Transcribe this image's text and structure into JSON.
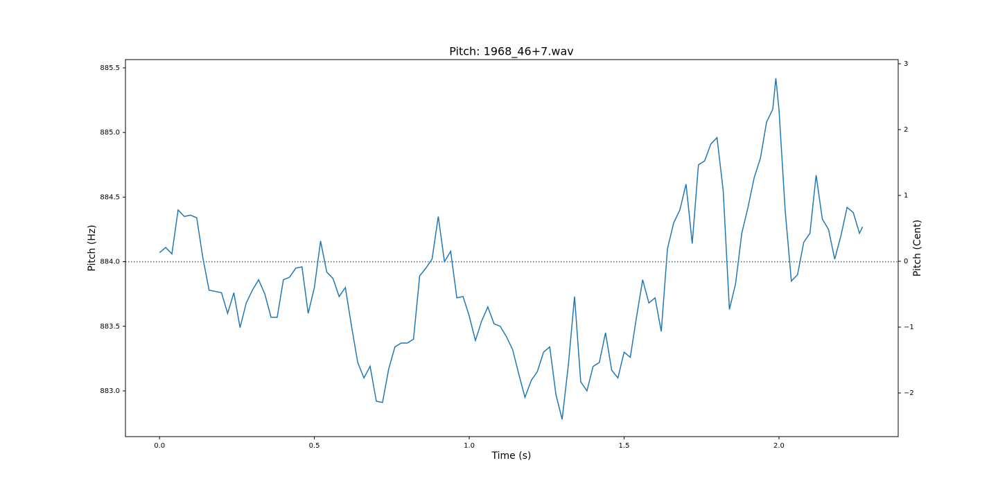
{
  "chart_data": {
    "type": "line",
    "title": "Pitch: 1968_46+7.wav",
    "xlabel": "Time (s)",
    "ylabel": "Pitch (Hz)",
    "y2label": "Pitch (Cent)",
    "color": "#1f77b4",
    "hline": 884.0,
    "hline_style": "dotted",
    "xlim": [
      -0.11,
      2.385
    ],
    "ylim": [
      882.646,
      885.564
    ],
    "y2lim": [
      -2.663,
      3.063
    ],
    "xticks": [
      {
        "value": 0,
        "label": "0.0"
      },
      0.5,
      {
        "value": 1,
        "label": "1.0"
      },
      1.5,
      {
        "value": 2,
        "label": "2.0"
      }
    ],
    "yticks": [
      {
        "value": 883,
        "label": "883.0"
      },
      883.5,
      {
        "value": 884,
        "label": "884.0"
      },
      884.5,
      {
        "value": 885,
        "label": "885.0"
      },
      885.5
    ],
    "y2ticks": [
      {
        "value": -2,
        "label": "−2"
      },
      {
        "value": -1,
        "label": "−1"
      },
      0,
      1,
      2,
      3
    ],
    "x": [
      0,
      0.02,
      0.04,
      0.06,
      0.08,
      0.1,
      0.12,
      0.14,
      0.16,
      0.18,
      0.2,
      0.22,
      0.24,
      0.26,
      0.28,
      0.3,
      0.32,
      0.34,
      0.36,
      0.38,
      0.4,
      0.42,
      0.44,
      0.46,
      0.48,
      0.5,
      0.52,
      0.54,
      0.56,
      0.58,
      0.6,
      0.62,
      0.64,
      0.66,
      0.68,
      0.7,
      0.72,
      0.74,
      0.76,
      0.78,
      0.8,
      0.82,
      0.84,
      0.86,
      0.88,
      0.9,
      0.92,
      0.94,
      0.96,
      0.98,
      1.0,
      1.02,
      1.04,
      1.06,
      1.08,
      1.1,
      1.12,
      1.14,
      1.16,
      1.18,
      1.2,
      1.22,
      1.24,
      1.26,
      1.28,
      1.3,
      1.32,
      1.34,
      1.36,
      1.38,
      1.4,
      1.42,
      1.44,
      1.46,
      1.48,
      1.5,
      1.52,
      1.54,
      1.56,
      1.58,
      1.6,
      1.62,
      1.64,
      1.66,
      1.68,
      1.7,
      1.72,
      1.74,
      1.76,
      1.78,
      1.8,
      1.82,
      1.84,
      1.86,
      1.88,
      1.9,
      1.92,
      1.94,
      1.96,
      1.98,
      1.99,
      2.0,
      2.02,
      2.04,
      2.06,
      2.08,
      2.1,
      2.12,
      2.14,
      2.16,
      2.18,
      2.2,
      2.22,
      2.24,
      2.26,
      2.27
    ],
    "values": [
      884.07,
      884.11,
      884.06,
      884.4,
      884.35,
      884.36,
      884.34,
      884.03,
      883.78,
      883.77,
      883.76,
      883.6,
      883.76,
      883.49,
      883.68,
      883.78,
      883.86,
      883.75,
      883.57,
      883.57,
      883.86,
      883.88,
      883.95,
      883.96,
      883.6,
      883.8,
      884.16,
      883.92,
      883.87,
      883.73,
      883.8,
      883.5,
      883.22,
      883.1,
      883.19,
      882.92,
      882.91,
      883.17,
      883.34,
      883.37,
      883.37,
      883.4,
      883.89,
      883.95,
      884.02,
      884.35,
      884.0,
      884.08,
      883.72,
      883.73,
      883.58,
      883.39,
      883.54,
      883.65,
      883.52,
      883.5,
      883.42,
      883.32,
      883.13,
      882.95,
      883.08,
      883.15,
      883.3,
      883.34,
      882.97,
      882.78,
      883.2,
      883.73,
      883.07,
      883.0,
      883.19,
      883.22,
      883.45,
      883.16,
      883.1,
      883.3,
      883.26,
      883.57,
      883.86,
      883.68,
      883.72,
      883.46,
      884.1,
      884.3,
      884.4,
      884.6,
      884.14,
      884.75,
      884.78,
      884.91,
      884.96,
      884.55,
      883.63,
      883.83,
      884.22,
      884.42,
      884.65,
      884.8,
      885.08,
      885.18,
      885.42,
      885.18,
      884.4,
      883.85,
      883.9,
      884.15,
      884.22,
      884.67,
      884.33,
      884.25,
      884.02,
      884.2,
      884.42,
      884.38,
      884.22,
      884.27
    ]
  }
}
